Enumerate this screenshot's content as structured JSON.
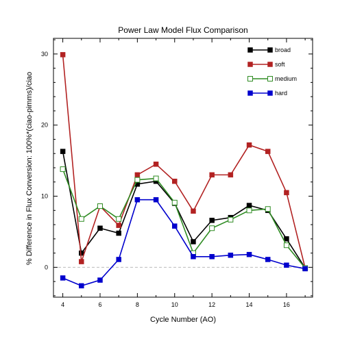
{
  "chart_data": {
    "type": "line",
    "title": "Power Law Model Flux Comparison",
    "xlabel": "Cycle Number (AO)",
    "ylabel": "% Difference in Flux Conversion: 100%*(ciao-pimms)/ciao",
    "xlim": [
      3.5,
      17.4
    ],
    "ylim": [
      -4.2,
      32.2
    ],
    "xticks": [
      "4",
      "6",
      "8",
      "10",
      "12",
      "14",
      "16"
    ],
    "yticks": [
      "0",
      "10",
      "20",
      "30"
    ],
    "reference_line": 0,
    "legend_position": "top-right",
    "x": [
      4,
      5,
      6,
      7,
      8,
      9,
      10,
      11,
      12,
      13,
      14,
      15,
      16,
      17
    ],
    "series": [
      {
        "name": "broad",
        "color": "#000000",
        "marker": "filled-square",
        "values": [
          16.3,
          2.0,
          5.5,
          4.8,
          11.7,
          12.1,
          9.0,
          3.6,
          6.6,
          7.0,
          8.7,
          8.0,
          4.0,
          -0.1
        ]
      },
      {
        "name": "soft",
        "color": "#b22222",
        "marker": "filled-square",
        "values": [
          29.9,
          0.8,
          8.6,
          5.9,
          13.0,
          14.5,
          12.1,
          7.9,
          13.0,
          13.0,
          17.2,
          16.3,
          10.5,
          -0.1
        ]
      },
      {
        "name": "medium",
        "color": "#2e8b22",
        "marker": "open-square",
        "values": [
          13.8,
          6.8,
          8.6,
          6.8,
          12.3,
          12.5,
          9.1,
          2.0,
          5.5,
          6.7,
          8.0,
          8.2,
          3.1,
          -0.1
        ]
      },
      {
        "name": "hard",
        "color": "#0000cd",
        "marker": "filled-square",
        "values": [
          -1.5,
          -2.6,
          -1.8,
          1.1,
          9.5,
          9.5,
          5.8,
          1.5,
          1.5,
          1.7,
          1.8,
          1.1,
          0.3,
          -0.2
        ]
      }
    ]
  }
}
